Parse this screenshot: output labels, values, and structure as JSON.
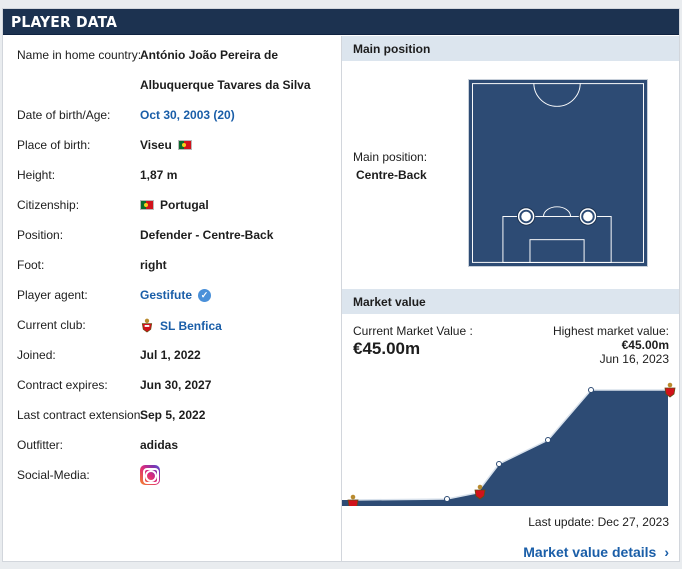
{
  "header": {
    "title": "PLAYER DATA"
  },
  "player": {
    "rows": [
      {
        "label": "Name in home country:",
        "value": "António João Pereira de"
      },
      {
        "label": "",
        "value": "Albuquerque Tavares da Silva"
      },
      {
        "label": "Date of birth/Age:",
        "value": "Oct 30, 2003 (20)"
      },
      {
        "label": "Place of birth:",
        "value": "Viseu"
      },
      {
        "label": "Height:",
        "value": "1,87 m"
      },
      {
        "label": "Citizenship:",
        "value": "Portugal"
      },
      {
        "label": "Position:",
        "value": "Defender - Centre-Back"
      },
      {
        "label": "Foot:",
        "value": "right"
      },
      {
        "label": "Player agent:",
        "value": "Gestifute"
      },
      {
        "label": "Current club:",
        "value": "SL Benfica"
      },
      {
        "label": "Joined:",
        "value": "Jul 1, 2022"
      },
      {
        "label": "Contract expires:",
        "value": "Jun 30, 2027"
      },
      {
        "label": "Last contract extension:",
        "value": "Sep 5, 2022"
      },
      {
        "label": "Outfitter:",
        "value": "adidas"
      },
      {
        "label": "Social-Media:",
        "value": ""
      }
    ]
  },
  "main_position": {
    "section_title": "Main position",
    "label": "Main position:",
    "value": "Centre-Back"
  },
  "market_value": {
    "section_title": "Market value",
    "current_label": "Current Market Value :",
    "current_value": "€45.00m",
    "highest_label": "Highest market value:",
    "highest_value": "€45.00m",
    "highest_date": "Jun 16, 2023",
    "last_update": "Last update: Dec 27, 2023",
    "details_link": "Market value details"
  },
  "colors": {
    "header": "#1c3250",
    "accent_link": "#1a5ea8",
    "chart_fill": "#2d4b74"
  }
}
